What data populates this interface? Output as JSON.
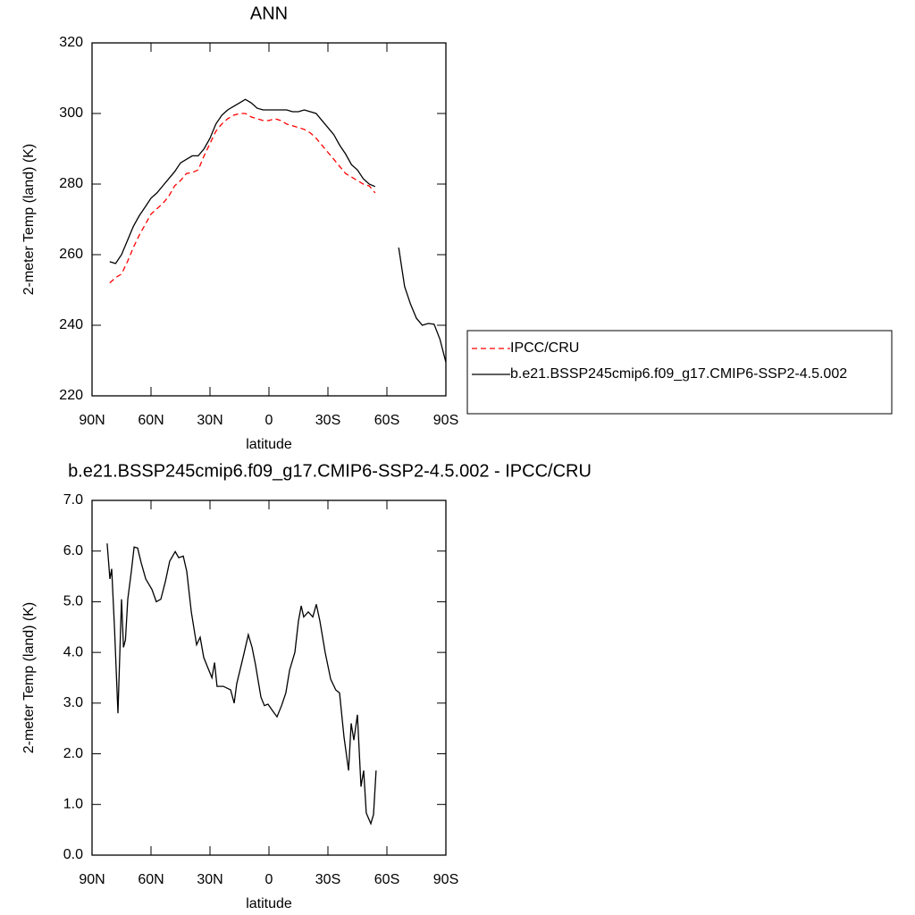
{
  "chart_data": [
    {
      "type": "line",
      "title": "ANN",
      "xlabel": "latitude",
      "ylabel": "2-meter Temp (land) (K)",
      "x": [
        81,
        78,
        75,
        72,
        69,
        66,
        63,
        60,
        57,
        54,
        51,
        48,
        45,
        42,
        39,
        36,
        33,
        30,
        27,
        24,
        21,
        18,
        15,
        12,
        9,
        6,
        3,
        0,
        -3,
        -6,
        -9,
        -12,
        -15,
        -18,
        -21,
        -24,
        -27,
        -30,
        -33,
        -36,
        -39,
        -42,
        -45,
        -48,
        -51,
        -54,
        -57,
        -60,
        -63,
        -66,
        -69,
        -72,
        -75,
        -78,
        -81,
        -84,
        -87,
        -90
      ],
      "series": [
        {
          "name": "IPCC/CRU",
          "color": "#ff0000",
          "dashed": true,
          "values": [
            252,
            253.5,
            254.5,
            258,
            262,
            265.5,
            268.5,
            271.5,
            273,
            274.5,
            276.5,
            279.5,
            281,
            283,
            283.3,
            284,
            288,
            291.5,
            295,
            297,
            298.5,
            299.5,
            300,
            300,
            299,
            298.5,
            298,
            298,
            298.5,
            298,
            297,
            296.5,
            296,
            295.5,
            294.5,
            293,
            291,
            289,
            287,
            285,
            283,
            282,
            281,
            280,
            279.5,
            277.5,
            null,
            null,
            null,
            null,
            null,
            null,
            null,
            null,
            null,
            null,
            null,
            null
          ]
        },
        {
          "name": "b.e21.BSSP245cmip6.f09_g17.CMIP6-SSP2-4.5.002",
          "color": "#000000",
          "dashed": false,
          "values": [
            258,
            257.5,
            260,
            264,
            268,
            271,
            273.5,
            276,
            277.5,
            279.5,
            281.5,
            283.5,
            286,
            287,
            288,
            288,
            290,
            293,
            297,
            299.5,
            301,
            302,
            303,
            304,
            303,
            301.5,
            301,
            301,
            301,
            301,
            301,
            300.5,
            300.5,
            301,
            300.5,
            300,
            298,
            296,
            294,
            291,
            288.5,
            285.5,
            284,
            281.5,
            280,
            279.3,
            null,
            null,
            null,
            262,
            251,
            246,
            242,
            240,
            240.5,
            240.3,
            236,
            229.5
          ]
        }
      ],
      "xlim": [
        90,
        -90
      ],
      "xticks": [
        {
          "value": 90,
          "label": "90N"
        },
        {
          "value": 60,
          "label": "60N"
        },
        {
          "value": 30,
          "label": "30N"
        },
        0,
        {
          "value": -30,
          "label": "30S"
        },
        {
          "value": -60,
          "label": "60S"
        },
        {
          "value": -90,
          "label": "90S"
        }
      ],
      "ylim": [
        220,
        320
      ],
      "yticks": [
        220,
        240,
        260,
        280,
        300,
        320
      ],
      "legend": "right"
    },
    {
      "type": "line",
      "title": "b.e21.BSSP245cmip6.f09_g17.CMIP6-SSP2-4.5.002 - IPCC/CRU",
      "xlabel": "latitude",
      "ylabel": "2-meter Temp (land) (K)",
      "x": [
        82.3,
        80.9,
        80,
        78.6,
        76.8,
        75,
        74,
        73,
        71.8,
        70,
        68.6,
        66.8,
        65,
        62.7,
        59.5,
        57.3,
        55,
        52.7,
        50.5,
        47.7,
        45.9,
        43.6,
        41.8,
        39.5,
        36.8,
        35,
        33.2,
        30.9,
        29,
        27.7,
        26.4,
        23.2,
        19.5,
        17.7,
        16.4,
        13.2,
        10.5,
        8.6,
        6.8,
        4.1,
        2.3,
        0.5,
        -1.8,
        -4.1,
        -6.4,
        -8.6,
        -10.5,
        -13.2,
        -15,
        -16.4,
        -17.7,
        -20,
        -22.3,
        -24.1,
        -25.9,
        -28.6,
        -31.4,
        -34,
        -35.9,
        -38.2,
        -40.5,
        -41.8,
        -43.2,
        -45,
        -46.8,
        -48.2,
        -49.5,
        -51.8,
        -53.2,
        -54.5
      ],
      "color": "#000000",
      "values": [
        6.15,
        5.45,
        5.65,
        4.5,
        2.8,
        5.05,
        4.1,
        4.25,
        5.05,
        5.6,
        6.08,
        6.06,
        5.77,
        5.45,
        5.24,
        5.0,
        5.05,
        5.4,
        5.8,
        5.99,
        5.87,
        5.9,
        5.6,
        4.8,
        4.15,
        4.3,
        3.9,
        3.68,
        3.5,
        3.8,
        3.33,
        3.33,
        3.26,
        3.0,
        3.38,
        3.9,
        4.35,
        4.1,
        3.75,
        3.12,
        2.95,
        2.98,
        2.85,
        2.73,
        2.95,
        3.2,
        3.65,
        4.0,
        4.62,
        4.92,
        4.7,
        4.8,
        4.7,
        4.95,
        4.62,
        4.0,
        3.47,
        3.26,
        3.2,
        2.33,
        1.67,
        2.6,
        2.27,
        2.77,
        1.35,
        1.67,
        0.83,
        0.62,
        0.8,
        1.67
      ],
      "xlim": [
        90,
        -90
      ],
      "xticks": [
        {
          "value": 90,
          "label": "90N"
        },
        {
          "value": 60,
          "label": "60N"
        },
        {
          "value": 30,
          "label": "30N"
        },
        0,
        {
          "value": -30,
          "label": "30S"
        },
        {
          "value": -60,
          "label": "60S"
        },
        {
          "value": -90,
          "label": "90S"
        }
      ],
      "ylim": [
        0,
        7
      ],
      "yticks": [
        {
          "value": 0,
          "label": "0.0"
        },
        {
          "value": 1,
          "label": "1.0"
        },
        {
          "value": 2,
          "label": "2.0"
        },
        {
          "value": 3,
          "label": "3.0"
        },
        {
          "value": 4,
          "label": "4.0"
        },
        {
          "value": 5,
          "label": "5.0"
        },
        {
          "value": 6,
          "label": "6.0"
        },
        {
          "value": 7,
          "label": "7.0"
        }
      ]
    }
  ]
}
